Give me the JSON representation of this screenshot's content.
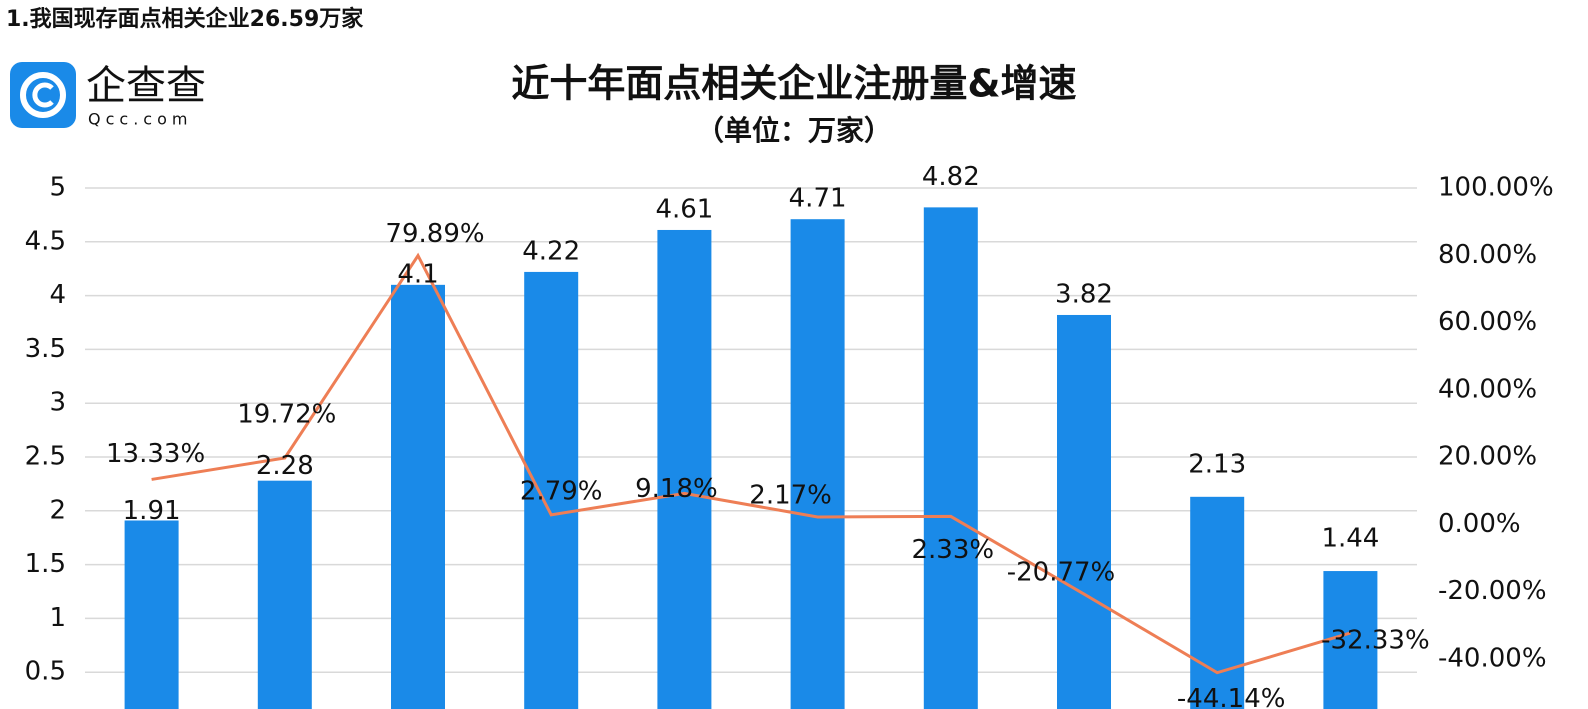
{
  "header": "1.我国现存面点相关企业26.59万家",
  "logo": {
    "name": "企查查",
    "domain": "Qcc.com"
  },
  "chart_data": {
    "type": "bar_line",
    "title": "近十年面点相关企业注册量&增速",
    "subtitle": "（单位：万家）",
    "categories": [
      null,
      null,
      null,
      null,
      null,
      null,
      null,
      null,
      null,
      null
    ],
    "series": [
      {
        "type": "bar",
        "color": "#1a8ae8",
        "values": [
          1.91,
          2.28,
          4.1,
          4.22,
          4.61,
          4.71,
          4.82,
          3.82,
          2.13,
          1.44
        ]
      },
      {
        "type": "line",
        "axis": "y2",
        "color": "#ee7e55",
        "values": [
          13.33,
          19.72,
          79.89,
          2.79,
          9.18,
          2.17,
          2.33,
          -20.77,
          -44.14,
          -32.33
        ],
        "value_labels": [
          "13.33%",
          "19.72%",
          "79.89%",
          "2.79%",
          "9.18%",
          "2.17%",
          "2.33%",
          "-20.77%",
          "-44.14%",
          "-32.33%"
        ]
      }
    ],
    "ylim": [
      0,
      5
    ],
    "yticks": [
      0.5,
      1,
      1.5,
      2,
      2.5,
      3,
      3.5,
      4,
      4.5,
      5
    ],
    "y2lim": [
      -60,
      100
    ],
    "y2ticks": [
      {
        "value": -40,
        "label": "-40.00%"
      },
      {
        "value": -20,
        "label": "-20.00%"
      },
      {
        "value": 0,
        "label": "0.00%"
      },
      {
        "value": 20,
        "label": "20.00%"
      },
      {
        "value": 40,
        "label": "40.00%"
      },
      {
        "value": 60,
        "label": "60.00%"
      },
      {
        "value": 80,
        "label": "80.00%"
      },
      {
        "value": 100,
        "label": "100.00%"
      }
    ],
    "grid": true
  }
}
